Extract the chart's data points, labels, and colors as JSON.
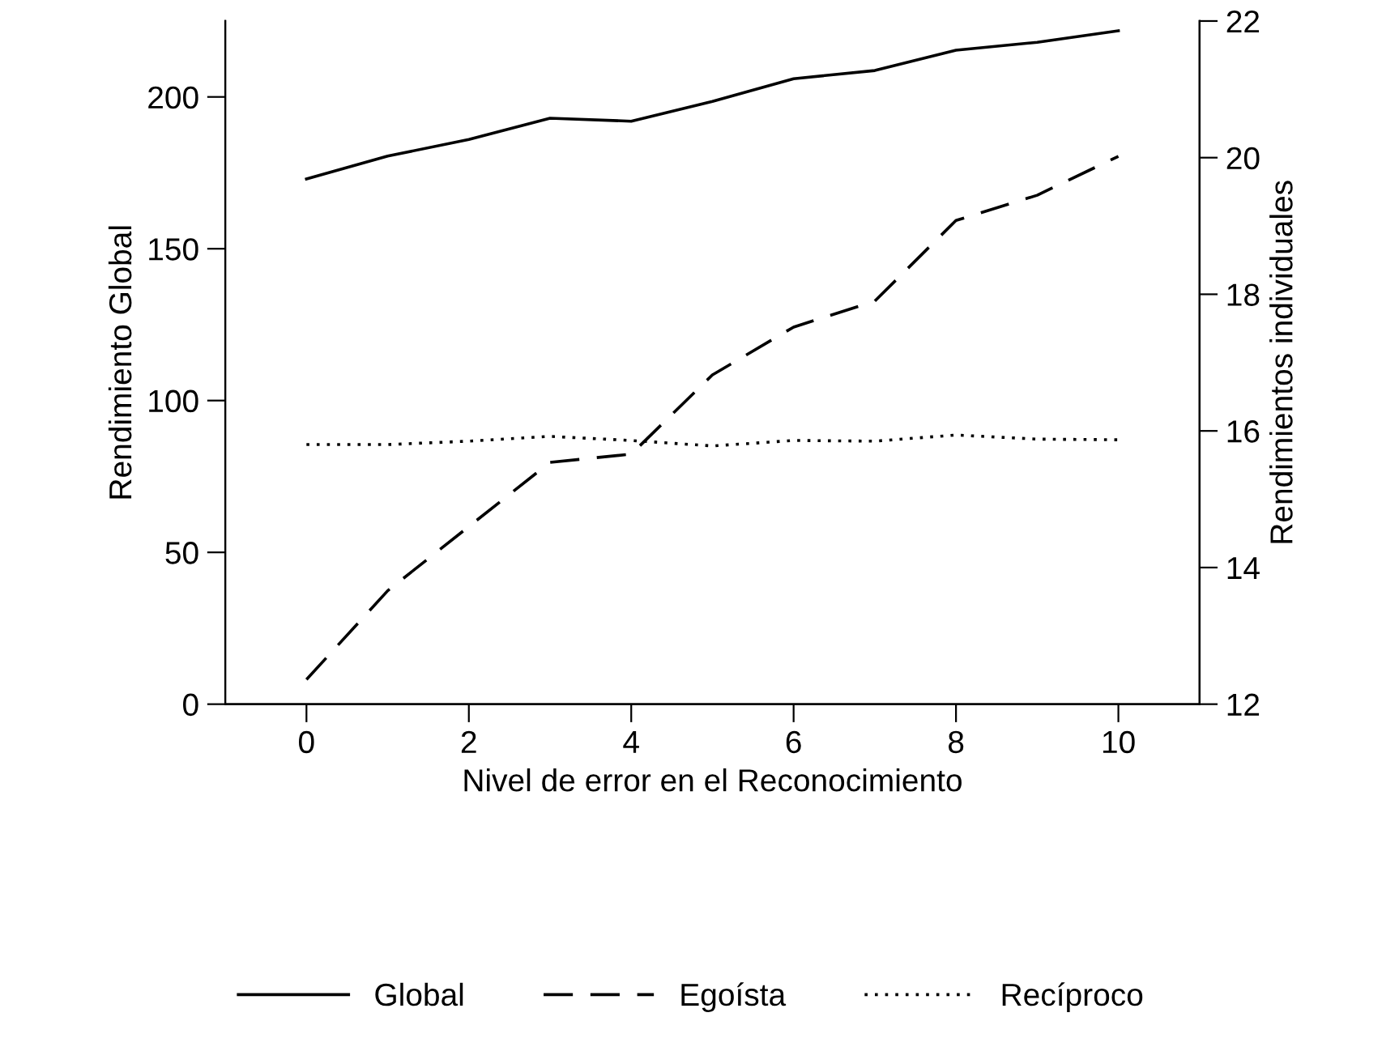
{
  "chart_data": {
    "type": "line",
    "xlabel": "Nivel de error en el Reconocimiento",
    "ylabel": "Rendimiento Global",
    "y2label": "Rendimientos individuales",
    "x": [
      0,
      1,
      2,
      3,
      4,
      5,
      6,
      7,
      8,
      9,
      10
    ],
    "series": [
      {
        "name": "Global",
        "color": "#000000",
        "line_style": "solid",
        "values": [
          173,
          180.5,
          186,
          193,
          192,
          198.5,
          206,
          208.7,
          215.4,
          218,
          221.8
        ]
      },
      {
        "name": "Egoísta",
        "color": "#000000",
        "line_style": "dashed",
        "axis": "y2",
        "values": [
          12.36,
          13.66,
          14.6,
          15.54,
          15.66,
          16.82,
          17.52,
          17.9,
          19.08,
          19.45,
          20.02
        ]
      },
      {
        "name": "Recíproco",
        "color": "#000000",
        "line_style": "dotted",
        "axis": "y2",
        "values": [
          15.8,
          15.8,
          15.85,
          15.92,
          15.86,
          15.78,
          15.86,
          15.85,
          15.94,
          15.88,
          15.87
        ]
      }
    ],
    "xlim": [
      -1,
      11
    ],
    "xticks": [
      0,
      2,
      4,
      6,
      8,
      10
    ],
    "ylim": [
      0,
      225
    ],
    "yticks": [
      0,
      50,
      100,
      150,
      200
    ],
    "y2lim": [
      12,
      22
    ],
    "y2ticks": [
      12,
      14,
      16,
      18,
      20,
      22
    ],
    "grid": false,
    "legend": "bottom",
    "marker": "none"
  }
}
